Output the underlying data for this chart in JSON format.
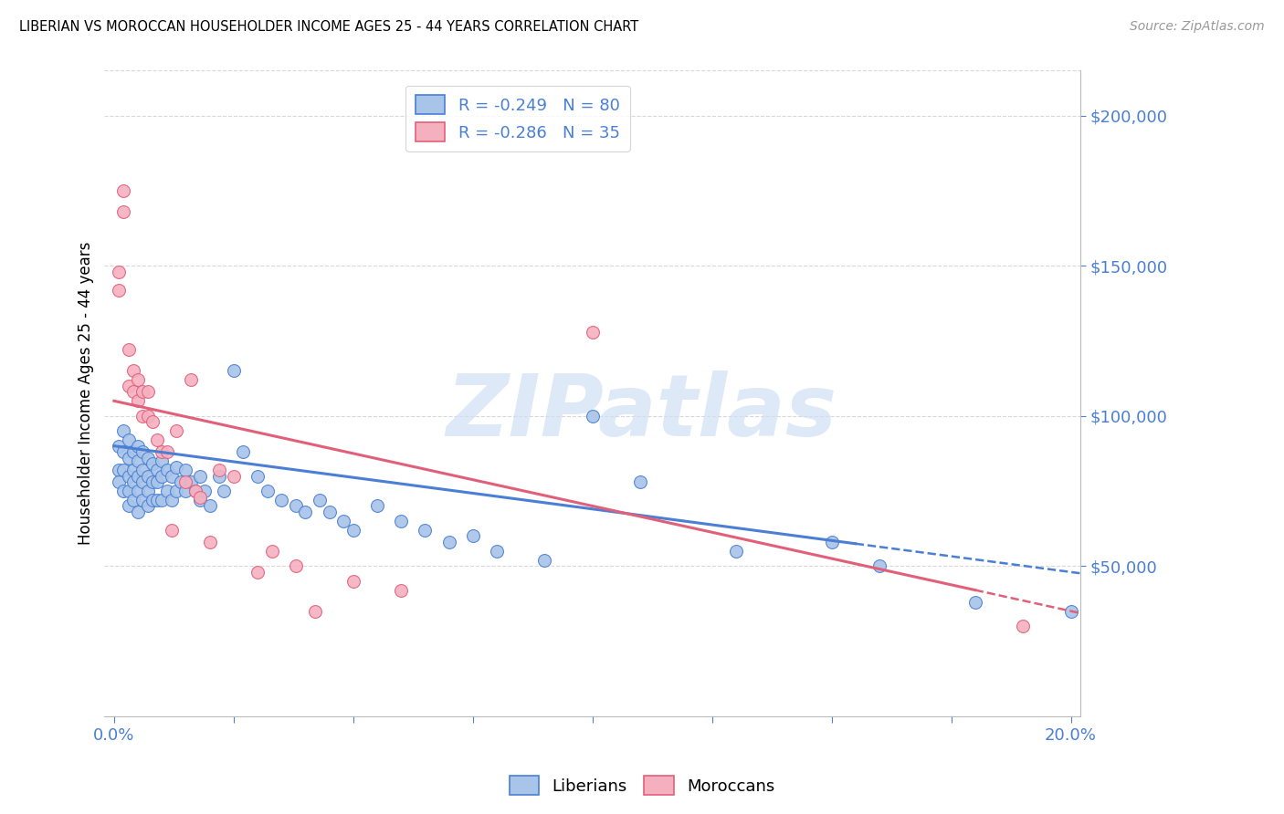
{
  "title": "LIBERIAN VS MOROCCAN HOUSEHOLDER INCOME AGES 25 - 44 YEARS CORRELATION CHART",
  "source": "Source: ZipAtlas.com",
  "ylabel": "Householder Income Ages 25 - 44 years",
  "xlim": [
    -0.002,
    0.202
  ],
  "ylim": [
    0,
    215000
  ],
  "xtick_positions": [
    0.0,
    0.025,
    0.05,
    0.075,
    0.1,
    0.125,
    0.15,
    0.175,
    0.2
  ],
  "ytick_positions": [
    50000,
    100000,
    150000,
    200000
  ],
  "ytick_labels": [
    "$50,000",
    "$100,000",
    "$150,000",
    "$200,000"
  ],
  "liberian_R": -0.249,
  "liberian_N": 80,
  "moroccan_R": -0.286,
  "moroccan_N": 35,
  "liberian_color": "#a8c4e8",
  "moroccan_color": "#f5b0c0",
  "liberian_line_color": "#4a7fd4",
  "moroccan_line_color": "#e0607a",
  "grid_color": "#d8d8d8",
  "tick_color": "#4a7fd4",
  "background_color": "#ffffff",
  "watermark_color": "#d0e0f5",
  "watermark_text": "ZIPatlas",
  "lib_intercept": 90000,
  "lib_slope": -210000,
  "mor_intercept": 105000,
  "mor_slope": -350000,
  "liberian_x": [
    0.001,
    0.001,
    0.001,
    0.002,
    0.002,
    0.002,
    0.002,
    0.003,
    0.003,
    0.003,
    0.003,
    0.003,
    0.004,
    0.004,
    0.004,
    0.004,
    0.005,
    0.005,
    0.005,
    0.005,
    0.005,
    0.006,
    0.006,
    0.006,
    0.006,
    0.007,
    0.007,
    0.007,
    0.007,
    0.008,
    0.008,
    0.008,
    0.009,
    0.009,
    0.009,
    0.01,
    0.01,
    0.01,
    0.011,
    0.011,
    0.012,
    0.012,
    0.013,
    0.013,
    0.014,
    0.015,
    0.015,
    0.016,
    0.017,
    0.018,
    0.018,
    0.019,
    0.02,
    0.022,
    0.023,
    0.025,
    0.027,
    0.03,
    0.032,
    0.035,
    0.038,
    0.04,
    0.043,
    0.045,
    0.048,
    0.05,
    0.055,
    0.06,
    0.065,
    0.07,
    0.075,
    0.08,
    0.09,
    0.1,
    0.11,
    0.13,
    0.15,
    0.16,
    0.18,
    0.2
  ],
  "liberian_y": [
    90000,
    82000,
    78000,
    95000,
    88000,
    82000,
    75000,
    92000,
    86000,
    80000,
    75000,
    70000,
    88000,
    82000,
    78000,
    72000,
    90000,
    85000,
    80000,
    75000,
    68000,
    88000,
    82000,
    78000,
    72000,
    86000,
    80000,
    75000,
    70000,
    84000,
    78000,
    72000,
    82000,
    78000,
    72000,
    85000,
    80000,
    72000,
    82000,
    75000,
    80000,
    72000,
    83000,
    75000,
    78000,
    82000,
    75000,
    78000,
    75000,
    80000,
    72000,
    75000,
    70000,
    80000,
    75000,
    115000,
    88000,
    80000,
    75000,
    72000,
    70000,
    68000,
    72000,
    68000,
    65000,
    62000,
    70000,
    65000,
    62000,
    58000,
    60000,
    55000,
    52000,
    100000,
    78000,
    55000,
    58000,
    50000,
    38000,
    35000
  ],
  "moroccan_x": [
    0.001,
    0.001,
    0.002,
    0.002,
    0.003,
    0.003,
    0.004,
    0.004,
    0.005,
    0.005,
    0.006,
    0.006,
    0.007,
    0.007,
    0.008,
    0.009,
    0.01,
    0.011,
    0.012,
    0.013,
    0.015,
    0.016,
    0.017,
    0.018,
    0.02,
    0.022,
    0.025,
    0.03,
    0.033,
    0.038,
    0.042,
    0.05,
    0.06,
    0.1,
    0.19
  ],
  "moroccan_y": [
    148000,
    142000,
    175000,
    168000,
    122000,
    110000,
    115000,
    108000,
    112000,
    105000,
    108000,
    100000,
    108000,
    100000,
    98000,
    92000,
    88000,
    88000,
    62000,
    95000,
    78000,
    112000,
    75000,
    73000,
    58000,
    82000,
    80000,
    48000,
    55000,
    50000,
    35000,
    45000,
    42000,
    128000,
    30000
  ]
}
